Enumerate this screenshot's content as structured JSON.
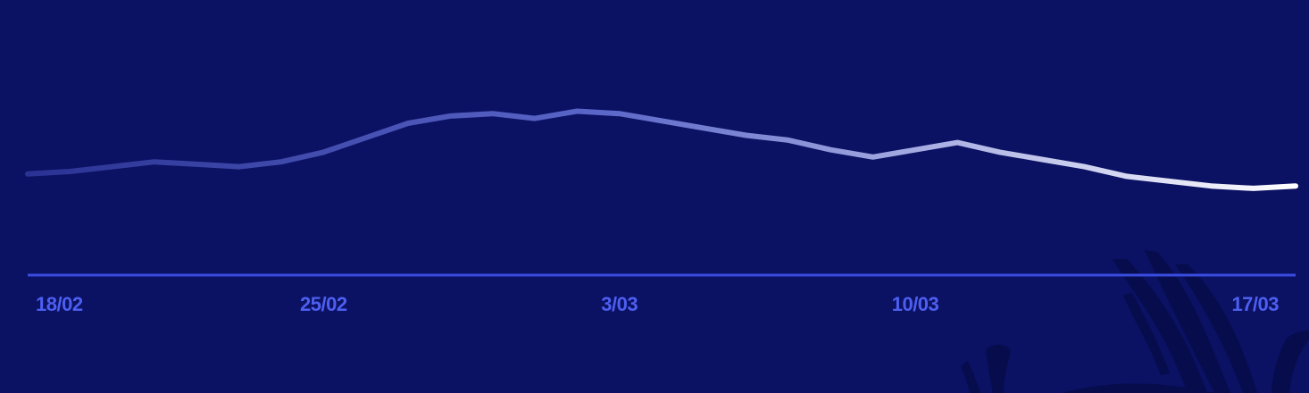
{
  "chart_data": {
    "type": "line",
    "title": "",
    "xlabel": "",
    "ylabel": "",
    "x_tick_labels": [
      "18/02",
      "25/02",
      "3/03",
      "10/03",
      "17/03"
    ],
    "x_tick_dates": [
      "2024-02-18",
      "2024-02-25",
      "2024-03-03",
      "2024-03-10",
      "2024-03-17"
    ],
    "ylim": [
      0,
      100
    ],
    "grid": false,
    "legend": "none",
    "series": [
      {
        "x": [
          "2024-02-18",
          "2024-02-19",
          "2024-02-20",
          "2024-02-21",
          "2024-02-22",
          "2024-02-23",
          "2024-02-24",
          "2024-02-25",
          "2024-02-26",
          "2024-02-27",
          "2024-02-28",
          "2024-02-29",
          "2024-03-01",
          "2024-03-02",
          "2024-03-03",
          "2024-03-04",
          "2024-03-05",
          "2024-03-06",
          "2024-03-07",
          "2024-03-08",
          "2024-03-09",
          "2024-03-10",
          "2024-03-11",
          "2024-03-12",
          "2024-03-13",
          "2024-03-14",
          "2024-03-15",
          "2024-03-16",
          "2024-03-17",
          "2024-03-18",
          "2024-03-19"
        ],
        "values": [
          39,
          40,
          42,
          44,
          43,
          42,
          44,
          48,
          54,
          60,
          63,
          64,
          62,
          65,
          64,
          61,
          58,
          55,
          53,
          49,
          46,
          49,
          52,
          48,
          45,
          42,
          38,
          36,
          34,
          33,
          34
        ]
      }
    ],
    "colors": {
      "background": "#0b1163",
      "axis_line": "#3a4ce0",
      "tick_label": "#4d5ff0",
      "line_start": "#2a3394",
      "line_end": "#ffffff",
      "seaweed": "#070c4c"
    }
  }
}
